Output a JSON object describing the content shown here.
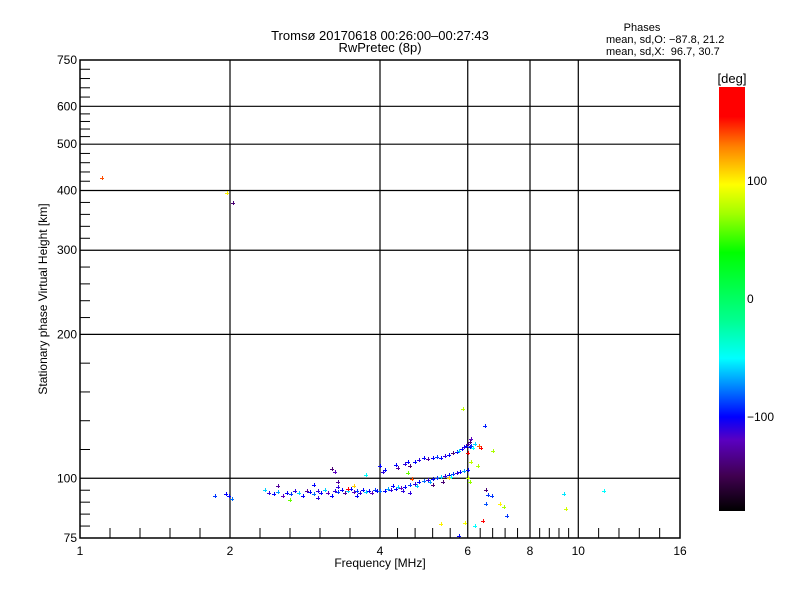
{
  "chart_data": {
    "type": "scatter",
    "title": "Tromsø 20170618 00:26:00–00:27:43",
    "subtitle": "RwPretec (8p)",
    "stats": {
      "heading": "Phases",
      "line_o": "mean, sd,O: −87.8, 21.2",
      "line_x": "mean, sd,X:  96.7, 30.7"
    },
    "xlabel": "Frequency [MHz]",
    "ylabel": "Stationary phase Virtual Height [km]",
    "xscale": "log",
    "yscale": "log",
    "xlim": [
      1,
      16
    ],
    "ylim": [
      75,
      750
    ],
    "xticks": [
      1,
      2,
      4,
      6,
      8,
      10,
      16
    ],
    "xtick_labels": [
      "1",
      "2",
      "4",
      "6",
      "8",
      "10",
      "16"
    ],
    "xgrid": [
      2,
      4,
      6,
      8,
      10
    ],
    "yticks": [
      75,
      100,
      200,
      300,
      400,
      500,
      600,
      750
    ],
    "ytick_labels": [
      "75",
      "100",
      "200",
      "300",
      "400",
      "500",
      "600",
      "750"
    ],
    "ygrid": [
      100,
      200,
      300,
      400,
      500,
      600
    ],
    "grid": true,
    "colorbar": {
      "label": "[deg]",
      "range": [
        -180,
        180
      ],
      "ticks": [
        100,
        0,
        -100
      ],
      "tick_labels": [
        "100",
        "0",
        "−100"
      ]
    },
    "points_format": [
      "frequency_MHz",
      "height_km",
      "phase_deg"
    ],
    "points": [
      [
        1.107,
        425,
        140
      ],
      [
        2.03,
        376,
        -140
      ],
      [
        1.97,
        395,
        100
      ],
      [
        1.87,
        91.7,
        -90
      ],
      [
        1.96,
        92.8,
        -100
      ],
      [
        1.99,
        91.7,
        -100
      ],
      [
        2.02,
        90.7,
        -80
      ],
      [
        9.36,
        92.8,
        -55
      ],
      [
        9.45,
        86.3,
        85
      ],
      [
        11.26,
        94,
        -50
      ],
      [
        5.87,
        139.6,
        80
      ],
      [
        6.5,
        128.6,
        -95
      ],
      [
        6.37,
        115.7,
        160
      ],
      [
        6.32,
        117,
        135
      ],
      [
        6.74,
        114,
        75
      ],
      [
        6.1,
        108,
        80
      ],
      [
        6.3,
        106,
        75
      ],
      [
        6.53,
        94.5,
        -140
      ],
      [
        6.6,
        92.3,
        -90
      ],
      [
        6.7,
        92,
        -90
      ],
      [
        6.53,
        88.5,
        -85
      ],
      [
        6.96,
        88.5,
        100
      ],
      [
        7.1,
        87,
        75
      ],
      [
        7.2,
        83.4,
        -90
      ],
      [
        6.45,
        81.5,
        160
      ],
      [
        5.93,
        80.7,
        95
      ],
      [
        6.2,
        79.4,
        -50
      ],
      [
        5.3,
        80.2,
        100
      ],
      [
        5.76,
        75.8,
        -100
      ],
      [
        6.0,
        100,
        80
      ],
      [
        6.05,
        98,
        70
      ],
      [
        2.35,
        94.5,
        -60
      ],
      [
        2.4,
        93,
        -110
      ],
      [
        2.45,
        92.5,
        -100
      ],
      [
        2.5,
        93.5,
        -70
      ],
      [
        2.55,
        92,
        -120
      ],
      [
        2.6,
        93,
        -100
      ],
      [
        2.65,
        92.5,
        -90
      ],
      [
        2.7,
        94,
        -110
      ],
      [
        2.75,
        93,
        -60
      ],
      [
        2.8,
        92,
        -100
      ],
      [
        2.85,
        94,
        -130
      ],
      [
        2.9,
        93.5,
        -100
      ],
      [
        2.95,
        92.5,
        -80
      ],
      [
        3.0,
        94,
        -110
      ],
      [
        3.05,
        93,
        -100
      ],
      [
        3.1,
        94.5,
        -60
      ],
      [
        3.15,
        93,
        -120
      ],
      [
        3.2,
        92,
        -100
      ],
      [
        3.25,
        94,
        -110
      ],
      [
        3.3,
        93.5,
        -90
      ],
      [
        3.35,
        94.5,
        -100
      ],
      [
        3.4,
        93,
        -130
      ],
      [
        3.45,
        94,
        -60
      ],
      [
        3.5,
        95,
        -100
      ],
      [
        3.55,
        93.5,
        -120
      ],
      [
        3.6,
        94,
        -90
      ],
      [
        3.65,
        93,
        -110
      ],
      [
        3.7,
        94.5,
        -100
      ],
      [
        3.75,
        93.5,
        -60
      ],
      [
        3.8,
        94,
        -100
      ],
      [
        3.85,
        93,
        -120
      ],
      [
        3.9,
        94.5,
        -90
      ],
      [
        3.95,
        94,
        -100
      ],
      [
        4.0,
        94.2,
        -80
      ],
      [
        2.95,
        97,
        -100
      ],
      [
        3.3,
        96,
        -110
      ],
      [
        2.64,
        90,
        60
      ],
      [
        3.45,
        95,
        160
      ],
      [
        2.5,
        96.5,
        -130
      ],
      [
        3.0,
        91,
        -110
      ],
      [
        3.6,
        92,
        -100
      ],
      [
        3.2,
        104.5,
        -140
      ],
      [
        3.25,
        103,
        -120
      ],
      [
        3.55,
        96.5,
        110
      ],
      [
        3.75,
        101.5,
        -50
      ],
      [
        3.3,
        98,
        -130
      ],
      [
        4.1,
        94,
        -100
      ],
      [
        4.15,
        95,
        -70
      ],
      [
        4.2,
        94.5,
        -110
      ],
      [
        4.3,
        95,
        -100
      ],
      [
        4.35,
        96,
        -60
      ],
      [
        4.4,
        95.5,
        -120
      ],
      [
        4.5,
        96,
        -100
      ],
      [
        4.6,
        97,
        -90
      ],
      [
        4.7,
        97.5,
        -110
      ],
      [
        4.75,
        96.5,
        -60
      ],
      [
        4.8,
        98,
        -100
      ],
      [
        4.9,
        98.5,
        -80
      ],
      [
        5.0,
        99,
        -110
      ],
      [
        5.05,
        98,
        -70
      ],
      [
        5.1,
        99.5,
        -100
      ],
      [
        5.2,
        100,
        -90
      ],
      [
        5.3,
        100.5,
        -60
      ],
      [
        5.4,
        101,
        -110
      ],
      [
        5.5,
        101.5,
        -100
      ],
      [
        5.55,
        100.5,
        -50
      ],
      [
        5.6,
        102,
        -90
      ],
      [
        5.7,
        102.5,
        -110
      ],
      [
        5.8,
        103,
        -100
      ],
      [
        5.9,
        103.5,
        -70
      ],
      [
        6.0,
        104,
        -100
      ],
      [
        5.1,
        97,
        -140
      ],
      [
        4.6,
        93,
        -110
      ],
      [
        5.35,
        98,
        -140
      ],
      [
        4.64,
        99.5,
        140
      ],
      [
        4.55,
        102.4,
        60
      ],
      [
        5.5,
        100,
        110
      ],
      [
        4.25,
        96.5,
        -100
      ],
      [
        4.45,
        94,
        -110
      ],
      [
        4.0,
        106,
        -100
      ],
      [
        4.05,
        103,
        -110
      ],
      [
        4.1,
        104,
        -100
      ],
      [
        4.3,
        106.5,
        -100
      ],
      [
        4.35,
        105,
        -130
      ],
      [
        4.5,
        107,
        -110
      ],
      [
        4.55,
        108,
        -100
      ],
      [
        4.6,
        106,
        -140
      ],
      [
        4.7,
        108,
        -100
      ],
      [
        4.8,
        109,
        -110
      ],
      [
        4.9,
        110,
        -100
      ],
      [
        5.0,
        109.5,
        -130
      ],
      [
        5.1,
        110,
        -100
      ],
      [
        5.2,
        111,
        -90
      ],
      [
        5.3,
        110.5,
        -100
      ],
      [
        5.4,
        111.5,
        -110
      ],
      [
        5.5,
        112,
        -100
      ],
      [
        5.6,
        113,
        -140
      ],
      [
        5.7,
        113.5,
        -100
      ],
      [
        5.75,
        114,
        -60
      ],
      [
        5.85,
        115,
        -100
      ],
      [
        5.9,
        116,
        -110
      ],
      [
        5.95,
        117,
        -100
      ],
      [
        6.0,
        118,
        -130
      ],
      [
        6.05,
        116.5,
        -100
      ],
      [
        6.1,
        117,
        -90
      ],
      [
        6.05,
        119,
        -140
      ],
      [
        6.15,
        115.5,
        -50
      ],
      [
        6.0,
        113,
        160
      ],
      [
        6.1,
        121,
        -120
      ],
      [
        6.2,
        118,
        -60
      ]
    ]
  }
}
